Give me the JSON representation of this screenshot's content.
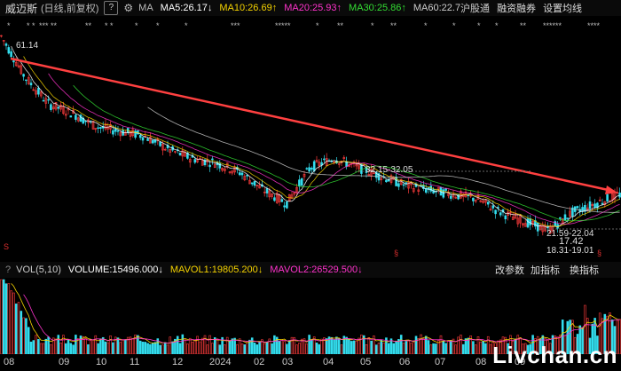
{
  "header": {
    "stock_name": "威迈斯",
    "period_mode": "(日线,前复权)",
    "help_label": "?",
    "settings_icon": "gear-icon",
    "ma_label": "MA",
    "ma5": "MA5:26.17",
    "ma5_arrow": "↓",
    "ma10": "MA10:26.69",
    "ma10_arrow": "↑",
    "ma20": "MA20:25.93",
    "ma20_arrow": "↑",
    "ma30": "MA30:25.86",
    "ma30_arrow": "↑",
    "ma60": "MA60:22.7",
    "links": [
      "沪股通",
      "融资融券",
      "设置均线"
    ],
    "colors": {
      "ma5": "#ffffff",
      "ma10": "#f5d300",
      "ma20": "#ff33cc",
      "ma30": "#33dd33",
      "ma60": "#cccccc"
    }
  },
  "price_labels": {
    "high": "61.14",
    "range1": "32.15-32.05",
    "range2": "21.59-22.04",
    "low_mark": "17.42",
    "range3": "18.31-19.01"
  },
  "volume_header": {
    "label": "VOL(5,10)",
    "volume": "VOLUME:15496.000",
    "volume_arrow": "↓",
    "mavol1": "MAVOL1:19805.200",
    "mavol1_arrow": "↓",
    "mavol2": "MAVOL2:26529.500",
    "mavol2_arrow": "↓",
    "buttons": [
      "改参数",
      "加指标",
      "换指标"
    ],
    "colors": {
      "mavol1": "#f5d300",
      "mavol2": "#ff33cc"
    }
  },
  "x_axis": {
    "labels": [
      "08",
      "09",
      "10",
      "11",
      "12",
      "2024",
      "02",
      "03",
      "04",
      "05",
      "06",
      "07",
      "08",
      "09"
    ]
  },
  "watermark": "Livchan.cn",
  "chart_data": {
    "type": "line",
    "title": "",
    "series": [
      {
        "values": [
          61.1,
          52,
          46,
          44,
          41,
          40,
          39,
          36,
          34,
          33,
          31,
          27,
          24,
          32,
          34,
          32,
          30,
          28,
          27,
          26,
          25,
          22,
          20,
          18,
          22,
          24,
          26
        ]
      }
    ],
    "annotations": [
      "61.14",
      "32.15-32.05",
      "21.59-22.04",
      "17.42",
      "18.31-19.01"
    ]
  }
}
